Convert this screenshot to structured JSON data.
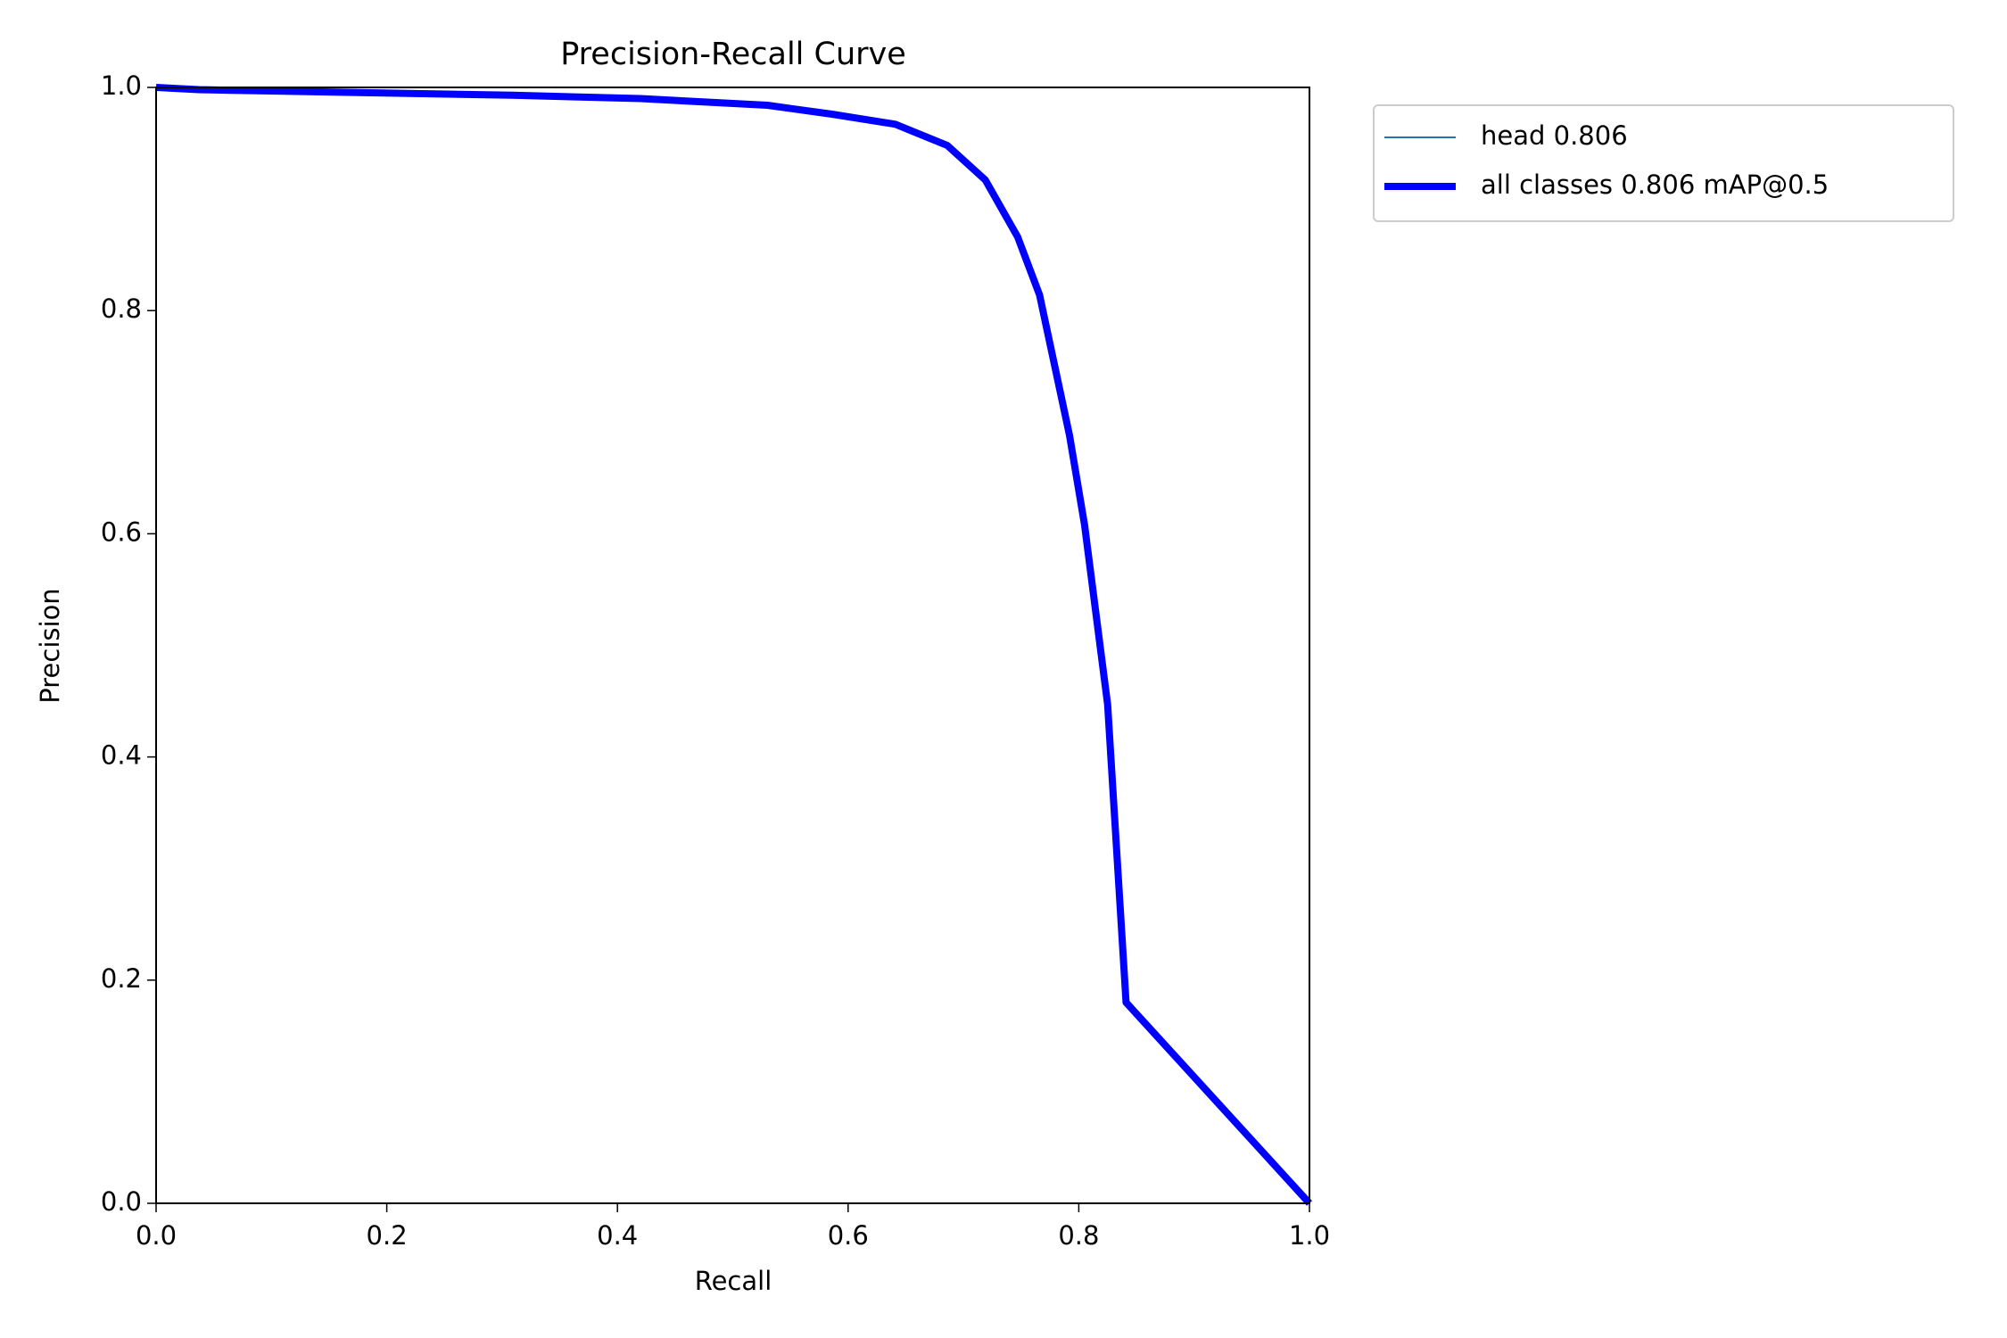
{
  "chart_data": {
    "type": "line",
    "title": "Precision-Recall Curve",
    "x_label": "Recall",
    "y_label": "Precision",
    "x": [
      0,
      0.037,
      0.198,
      0.309,
      0.42,
      0.53,
      0.586,
      0.641,
      0.686,
      0.719,
      0.747,
      0.766,
      0.792,
      0.805,
      0.825,
      0.841,
      1.0
    ],
    "series": [
      {
        "name": "head 0.806",
        "color": "#1f77b4",
        "width": "thin",
        "values": [
          1.0,
          0.998,
          0.995,
          0.993,
          0.99,
          0.984,
          0.976,
          0.967,
          0.948,
          0.917,
          0.866,
          0.814,
          0.688,
          0.608,
          0.447,
          0.18,
          0.0
        ]
      },
      {
        "name": "all classes 0.806 mAP@0.5",
        "color": "#0000ff",
        "width": "thick",
        "values": [
          1.0,
          0.998,
          0.995,
          0.993,
          0.99,
          0.984,
          0.976,
          0.967,
          0.948,
          0.917,
          0.866,
          0.814,
          0.688,
          0.608,
          0.447,
          0.18,
          0.0
        ]
      }
    ],
    "xlim": [
      0,
      1
    ],
    "ylim": [
      0,
      1
    ],
    "xticks": [
      {
        "value": 0,
        "label": "0.0"
      },
      0.2,
      0.4,
      0.6,
      0.8,
      {
        "value": 1,
        "label": "1.0"
      }
    ],
    "yticks": [
      {
        "value": 0,
        "label": "0.0"
      },
      0.2,
      0.4,
      0.6,
      0.8,
      {
        "value": 1,
        "label": "1.0"
      }
    ],
    "grid": false,
    "legend": "outside upper right"
  }
}
